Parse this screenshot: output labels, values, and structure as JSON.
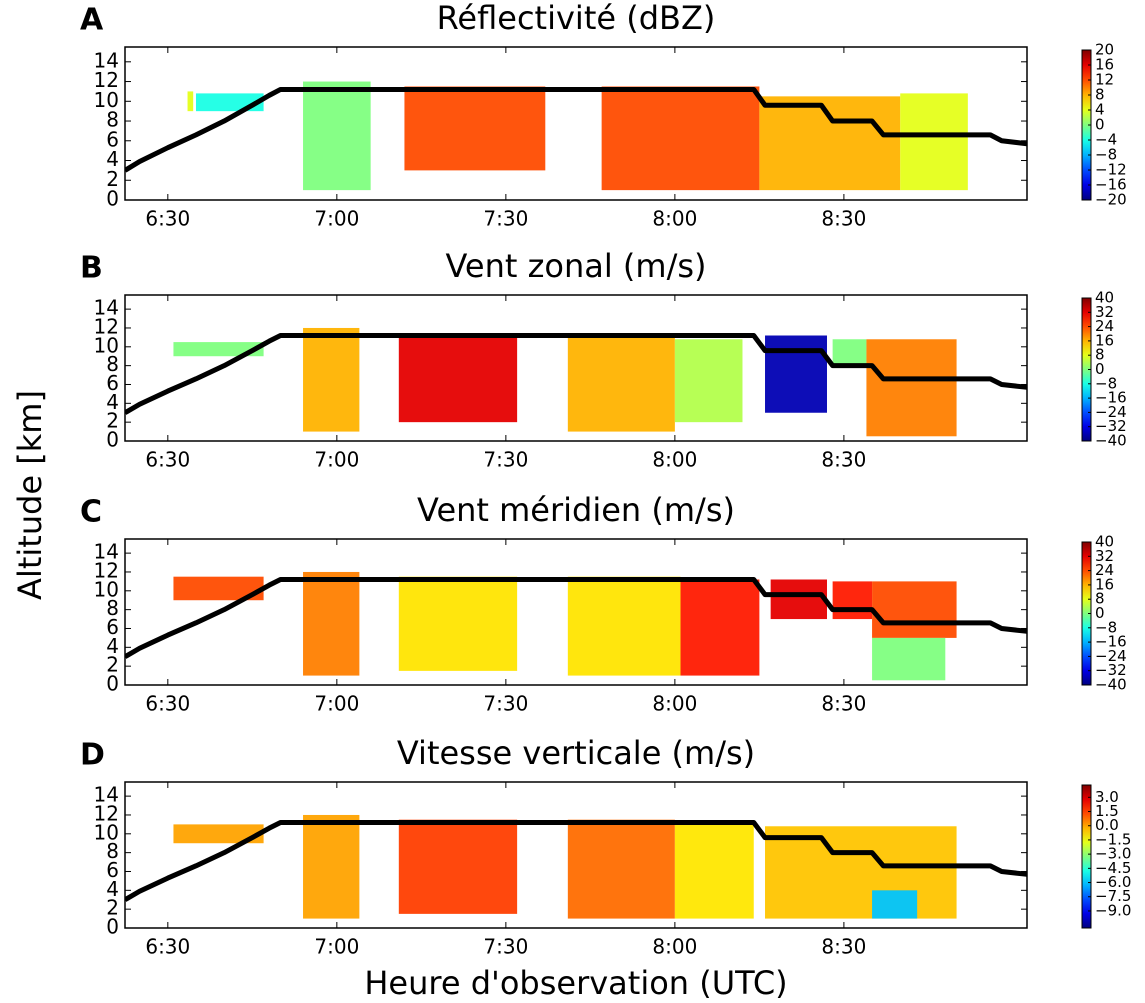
{
  "figure": {
    "ylabel": "Altitude [km]",
    "xlabel": "Heure d'observation (UTC)"
  },
  "chart_data": [
    {
      "type": "curtain",
      "label": "A",
      "title": "Réflectivité (dBZ)",
      "colormap": "jet",
      "xlim": [
        382.4,
        542.5
      ],
      "xticks": [
        {
          "value": 390,
          "label": "6:30"
        },
        {
          "value": 420,
          "label": "7:00"
        },
        {
          "value": 450,
          "label": "7:30"
        },
        {
          "value": 480,
          "label": "8:00"
        },
        {
          "value": 510,
          "label": "8:30"
        }
      ],
      "ylim": [
        0,
        15.5
      ],
      "yticks": [
        0,
        2,
        4,
        6,
        8,
        10,
        12,
        14
      ],
      "clim": [
        -20,
        20
      ],
      "cticks": [
        20,
        16,
        12,
        8,
        4,
        0,
        {
          "value": -4,
          "label": "−4"
        },
        {
          "value": -8,
          "label": "−8"
        },
        {
          "value": -12,
          "label": "−12"
        },
        {
          "value": -16,
          "label": "−16"
        },
        {
          "value": -20,
          "label": "−20"
        }
      ],
      "blocks": [
        {
          "x0": 393.5,
          "x1": 394.5,
          "y0": 9,
          "y1": 11,
          "value": 4
        },
        {
          "x0": 395,
          "x1": 407,
          "y0": 9,
          "y1": 10.8,
          "value": -4
        },
        {
          "x0": 414,
          "x1": 426,
          "y0": 1,
          "y1": 12,
          "value": 0
        },
        {
          "x0": 432,
          "x1": 457,
          "y0": 3,
          "y1": 11.5,
          "value": 12
        },
        {
          "x0": 467,
          "x1": 495,
          "y0": 1,
          "y1": 11.5,
          "value": 12
        },
        {
          "x0": 495,
          "x1": 520,
          "y0": 1,
          "y1": 10.5,
          "value": 8
        },
        {
          "x0": 520,
          "x1": 532,
          "y0": 1,
          "y1": 10.8,
          "value": 4
        }
      ],
      "track": {
        "color": "#000000",
        "x": [
          382.4,
          385,
          390,
          395,
          400,
          405,
          408,
          410,
          450,
          494,
          496,
          506,
          508,
          515,
          517,
          536,
          538,
          542.5
        ],
        "values": [
          3.0,
          3.9,
          5.3,
          6.6,
          8.0,
          9.6,
          10.6,
          11.2,
          11.2,
          11.2,
          9.6,
          9.6,
          8.0,
          8.0,
          6.6,
          6.6,
          6.0,
          5.7
        ]
      }
    },
    {
      "type": "curtain",
      "label": "B",
      "title": "Vent zonal (m/s)",
      "colormap": "jet",
      "xlim": [
        382.4,
        542.5
      ],
      "xticks": [
        {
          "value": 390,
          "label": "6:30"
        },
        {
          "value": 420,
          "label": "7:00"
        },
        {
          "value": 450,
          "label": "7:30"
        },
        {
          "value": 480,
          "label": "8:00"
        },
        {
          "value": 510,
          "label": "8:30"
        }
      ],
      "ylim": [
        0,
        15.5
      ],
      "yticks": [
        0,
        2,
        4,
        6,
        8,
        10,
        12,
        14
      ],
      "clim": [
        -40,
        40
      ],
      "cticks": [
        40,
        32,
        24,
        16,
        8,
        0,
        {
          "value": -8,
          "label": "−8"
        },
        {
          "value": -16,
          "label": "−16"
        },
        {
          "value": -24,
          "label": "−24"
        },
        {
          "value": -32,
          "label": "−32"
        },
        {
          "value": -40,
          "label": "−40"
        }
      ],
      "blocks": [
        {
          "x0": 391,
          "x1": 407,
          "y0": 9,
          "y1": 10.5,
          "value": 0
        },
        {
          "x0": 414,
          "x1": 424,
          "y0": 1,
          "y1": 12,
          "value": 16
        },
        {
          "x0": 431,
          "x1": 452,
          "y0": 2,
          "y1": 11.2,
          "value": 32
        },
        {
          "x0": 461,
          "x1": 480,
          "y0": 1,
          "y1": 11.2,
          "value": 16
        },
        {
          "x0": 480,
          "x1": 492,
          "y0": 2,
          "y1": 10.8,
          "value": 4
        },
        {
          "x0": 496,
          "x1": 507,
          "y0": 3,
          "y1": 11.2,
          "value": -36
        },
        {
          "x0": 508,
          "x1": 514,
          "y0": 8,
          "y1": 10.8,
          "value": 0
        },
        {
          "x0": 514,
          "x1": 530,
          "y0": 0.5,
          "y1": 10.8,
          "value": 20
        }
      ],
      "track": {
        "color": "#000000",
        "x": [
          382.4,
          385,
          390,
          395,
          400,
          405,
          408,
          410,
          450,
          494,
          496,
          506,
          508,
          515,
          517,
          536,
          538,
          542.5
        ],
        "values": [
          3.0,
          3.9,
          5.3,
          6.6,
          8.0,
          9.6,
          10.6,
          11.2,
          11.2,
          11.2,
          9.6,
          9.6,
          8.0,
          8.0,
          6.6,
          6.6,
          6.0,
          5.7
        ]
      }
    },
    {
      "type": "curtain",
      "label": "C",
      "title": "Vent méridien (m/s)",
      "colormap": "jet",
      "xlim": [
        382.4,
        542.5
      ],
      "xticks": [
        {
          "value": 390,
          "label": "6:30"
        },
        {
          "value": 420,
          "label": "7:00"
        },
        {
          "value": 450,
          "label": "7:30"
        },
        {
          "value": 480,
          "label": "8:00"
        },
        {
          "value": 510,
          "label": "8:30"
        }
      ],
      "ylim": [
        0,
        15.5
      ],
      "yticks": [
        0,
        2,
        4,
        6,
        8,
        10,
        12,
        14
      ],
      "clim": [
        -40,
        40
      ],
      "cticks": [
        40,
        32,
        24,
        16,
        8,
        0,
        {
          "value": -8,
          "label": "−8"
        },
        {
          "value": -16,
          "label": "−16"
        },
        {
          "value": -24,
          "label": "−24"
        },
        {
          "value": -32,
          "label": "−32"
        },
        {
          "value": -40,
          "label": "−40"
        }
      ],
      "blocks": [
        {
          "x0": 391,
          "x1": 407,
          "y0": 9,
          "y1": 11.5,
          "value": 24
        },
        {
          "x0": 414,
          "x1": 424,
          "y0": 1,
          "y1": 12,
          "value": 20
        },
        {
          "x0": 431,
          "x1": 452,
          "y0": 1.5,
          "y1": 11.5,
          "value": 12
        },
        {
          "x0": 461,
          "x1": 481,
          "y0": 1,
          "y1": 11.5,
          "value": 12
        },
        {
          "x0": 481,
          "x1": 495,
          "y0": 1,
          "y1": 11.2,
          "value": 28
        },
        {
          "x0": 497,
          "x1": 507,
          "y0": 7,
          "y1": 11.2,
          "value": 32
        },
        {
          "x0": 508,
          "x1": 515,
          "y0": 7,
          "y1": 11,
          "value": 28
        },
        {
          "x0": 515,
          "x1": 530,
          "y0": 5,
          "y1": 11,
          "value": 24
        },
        {
          "x0": 515,
          "x1": 528,
          "y0": 0.5,
          "y1": 5,
          "value": 0
        }
      ],
      "track": {
        "color": "#000000",
        "x": [
          382.4,
          385,
          390,
          395,
          400,
          405,
          408,
          410,
          450,
          494,
          496,
          506,
          508,
          515,
          517,
          536,
          538,
          542.5
        ],
        "values": [
          3.0,
          3.9,
          5.3,
          6.6,
          8.0,
          9.6,
          10.6,
          11.2,
          11.2,
          11.2,
          9.6,
          9.6,
          8.0,
          8.0,
          6.6,
          6.6,
          6.0,
          5.7
        ]
      }
    },
    {
      "type": "curtain",
      "label": "D",
      "title": "Vitesse verticale (m/s)",
      "colormap": "jet",
      "xlim": [
        382.4,
        542.5
      ],
      "xticks": [
        {
          "value": 390,
          "label": "6:30"
        },
        {
          "value": 420,
          "label": "7:00"
        },
        {
          "value": 450,
          "label": "7:30"
        },
        {
          "value": 480,
          "label": "8:00"
        },
        {
          "value": 510,
          "label": "8:30"
        }
      ],
      "ylim": [
        0,
        15.5
      ],
      "yticks": [
        0,
        2,
        4,
        6,
        8,
        10,
        12,
        14
      ],
      "clim": [
        -10.8,
        4.3
      ],
      "cticks": [
        {
          "value": 3,
          "label": "3.0"
        },
        {
          "value": 1.5,
          "label": "1.5"
        },
        {
          "value": 0,
          "label": "0.0"
        },
        {
          "value": -1.5,
          "label": "−1.5"
        },
        {
          "value": -3,
          "label": "−3.0"
        },
        {
          "value": -4.5,
          "label": "−4.5"
        },
        {
          "value": -6,
          "label": "−6.0"
        },
        {
          "value": -7.5,
          "label": "−7.5"
        },
        {
          "value": -9,
          "label": "−9.0"
        }
      ],
      "blocks": [
        {
          "x0": 391,
          "x1": 407,
          "y0": 9,
          "y1": 11,
          "value": 0
        },
        {
          "x0": 414,
          "x1": 424,
          "y0": 1,
          "y1": 12,
          "value": 0
        },
        {
          "x0": 431,
          "x1": 452,
          "y0": 1.5,
          "y1": 11.5,
          "value": 1.5
        },
        {
          "x0": 461,
          "x1": 480,
          "y0": 1,
          "y1": 11.5,
          "value": 0.8
        },
        {
          "x0": 480,
          "x1": 494,
          "y0": 1,
          "y1": 11,
          "value": -1
        },
        {
          "x0": 496,
          "x1": 530,
          "y0": 1,
          "y1": 10.8,
          "value": -0.5
        },
        {
          "x0": 515,
          "x1": 523,
          "y0": 1,
          "y1": 4,
          "value": -6
        }
      ],
      "track": {
        "color": "#000000",
        "x": [
          382.4,
          385,
          390,
          395,
          400,
          405,
          408,
          410,
          450,
          494,
          496,
          506,
          508,
          515,
          517,
          536,
          538,
          542.5
        ],
        "values": [
          3.0,
          3.9,
          5.3,
          6.6,
          8.0,
          9.6,
          10.6,
          11.2,
          11.2,
          11.2,
          9.6,
          9.6,
          8.0,
          8.0,
          6.6,
          6.6,
          6.0,
          5.7
        ]
      }
    }
  ]
}
